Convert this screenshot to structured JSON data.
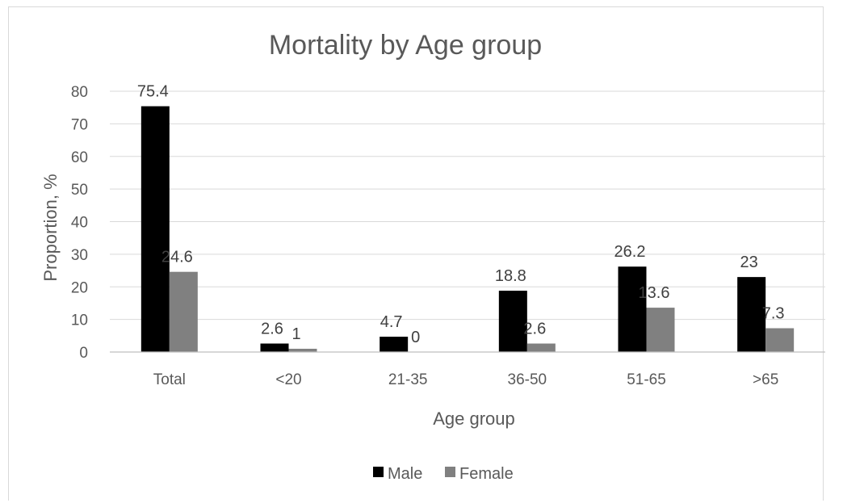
{
  "chart_data": {
    "type": "bar",
    "title": "Mortality by Age group",
    "xlabel": "Age group",
    "ylabel": "Proportion, %",
    "categories": [
      "Total",
      "<20",
      "21-35",
      "36-50",
      "51-65",
      ">65"
    ],
    "series": [
      {
        "name": "Male",
        "values": [
          75.4,
          2.6,
          4.7,
          18.8,
          26.2,
          23
        ],
        "labels": [
          "75.4",
          "2.6",
          "4.7",
          "18.8",
          "26.2",
          "23"
        ],
        "color": "#000000"
      },
      {
        "name": "Female",
        "values": [
          24.6,
          1,
          0,
          2.6,
          13.6,
          7.3
        ],
        "labels": [
          "24.6",
          "1",
          "0",
          "2.6",
          "13.6",
          "7.3"
        ],
        "color": "#808080"
      }
    ],
    "ylim": [
      0,
      80
    ],
    "yticks": [
      "0",
      "10",
      "20",
      "30",
      "40",
      "50",
      "60",
      "70",
      "80"
    ],
    "grid": true,
    "legend_position": "bottom"
  }
}
